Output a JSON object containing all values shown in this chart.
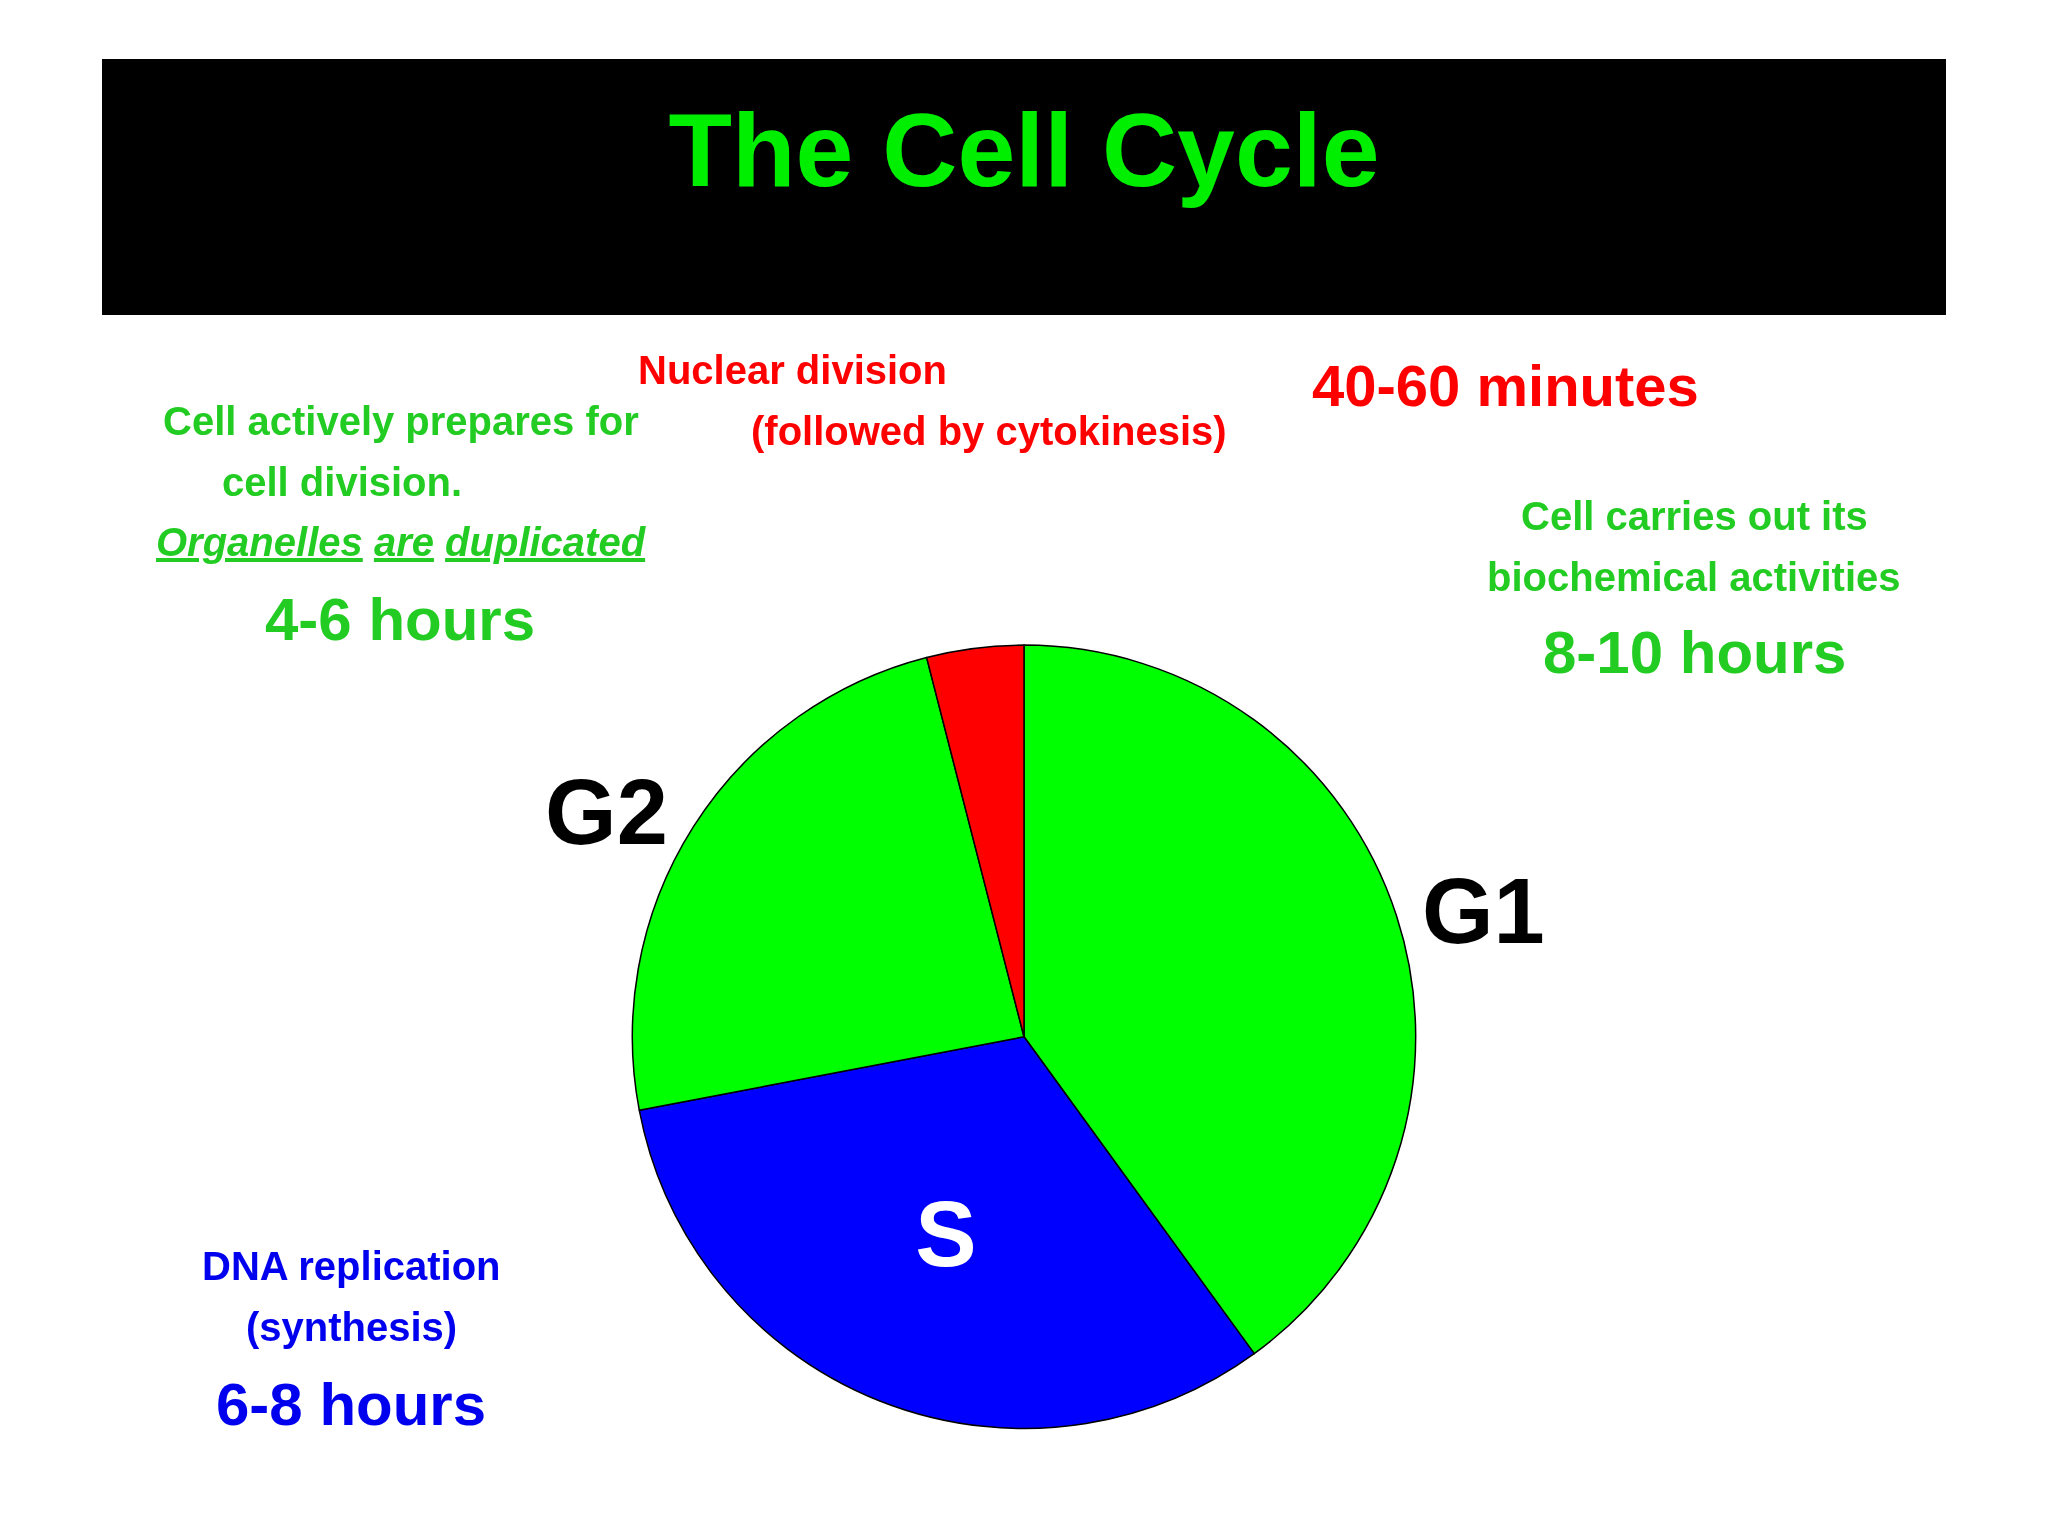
{
  "chart_data": {
    "type": "pie",
    "title": "The Cell Cycle",
    "categories": [
      "G1",
      "S",
      "G2",
      null
    ],
    "values": [
      40,
      32,
      24,
      4
    ],
    "colors": [
      "#00ff00",
      "#0000ff",
      "#00ff00",
      "#ff0000"
    ],
    "annotations": [
      "Nuclear division",
      "(followed by cytokinesis)",
      "40-60 minutes",
      "Cell actively prepares for",
      "cell division.",
      "Organelles are duplicated",
      "4-6 hours",
      "Cell carries out its",
      "biochemical activities",
      "8-10 hours",
      "DNA replication",
      "(synthesis)",
      "6-8 hours"
    ]
  }
}
